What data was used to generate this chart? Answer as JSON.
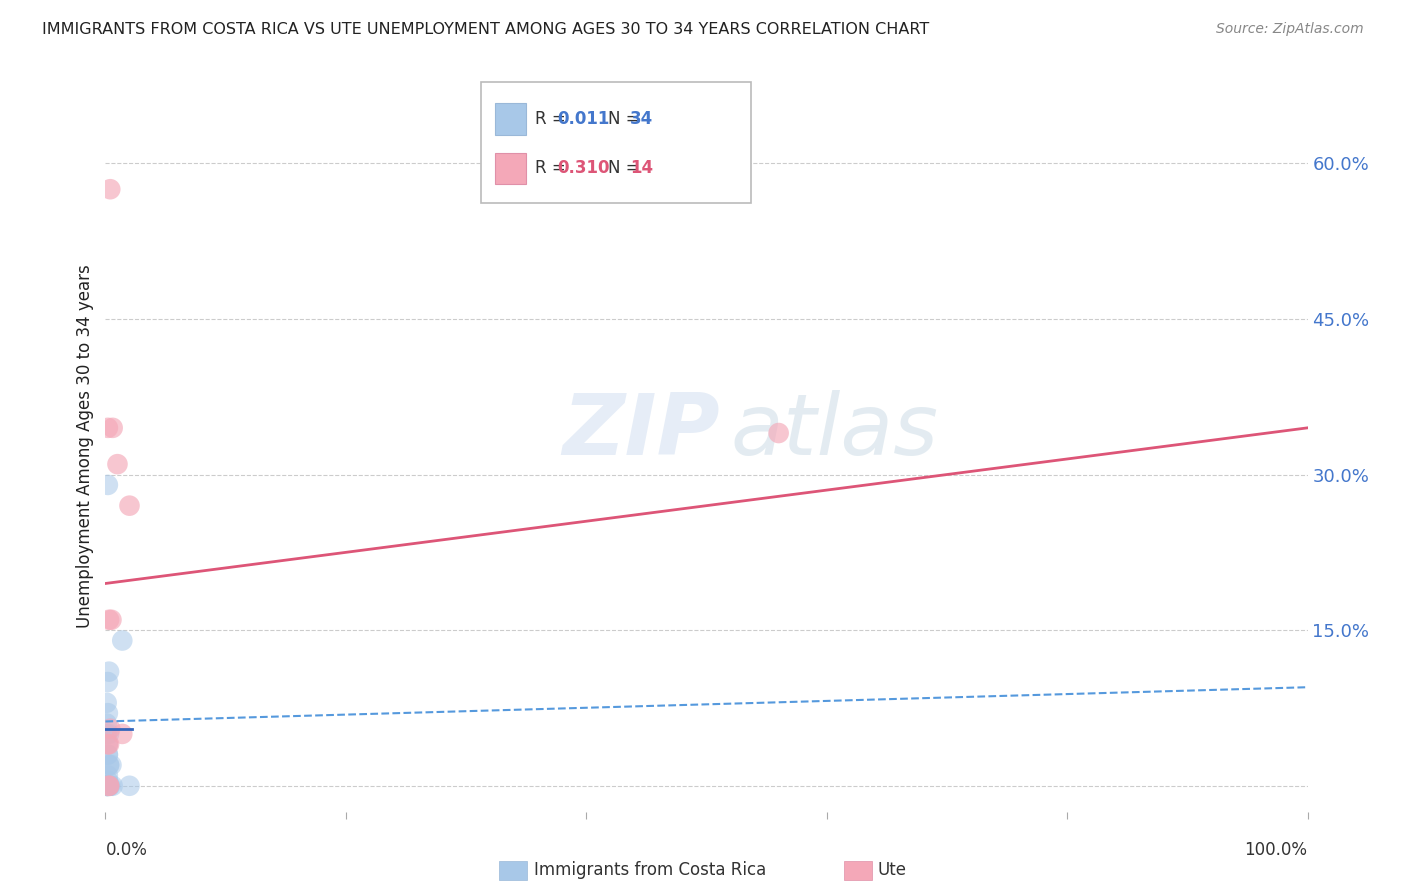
{
  "title": "IMMIGRANTS FROM COSTA RICA VS UTE UNEMPLOYMENT AMONG AGES 30 TO 34 YEARS CORRELATION CHART",
  "source": "Source: ZipAtlas.com",
  "ylabel": "Unemployment Among Ages 30 to 34 years",
  "ytick_values": [
    0.0,
    0.15,
    0.3,
    0.45,
    0.6
  ],
  "right_ytick_vals": [
    0.15,
    0.3,
    0.45,
    0.6
  ],
  "right_ytick_labels": [
    "15.0%",
    "30.0%",
    "45.0%",
    "60.0%"
  ],
  "xlim": [
    0.0,
    1.0
  ],
  "ylim": [
    -0.025,
    0.68
  ],
  "watermark_line1": "ZIP",
  "watermark_line2": "atlas",
  "legend_r1": "0.011",
  "legend_n1": "34",
  "legend_r2": "0.310",
  "legend_n2": "14",
  "blue_color": "#a8c8e8",
  "pink_color": "#f4a8b8",
  "blue_line_color": "#3366bb",
  "blue_dash_color": "#5599dd",
  "pink_line_color": "#dd5577",
  "title_color": "#222222",
  "right_axis_color": "#4477cc",
  "legend_r_color": "#4477cc",
  "legend_r2_color": "#dd5577",
  "blue_scatter_x": [
    0.002,
    0.003,
    0.001,
    0.004,
    0.003,
    0.002,
    0.003,
    0.002,
    0.001,
    0.002,
    0.003,
    0.001,
    0.002,
    0.001,
    0.002,
    0.003,
    0.002,
    0.001,
    0.001,
    0.002,
    0.001,
    0.002,
    0.001,
    0.002,
    0.001,
    0.003,
    0.002,
    0.001,
    0.014,
    0.02,
    0.005,
    0.006,
    0.002,
    0.002
  ],
  "blue_scatter_y": [
    0.005,
    0.0,
    0.0,
    0.0,
    0.02,
    0.03,
    0.05,
    0.07,
    0.08,
    0.1,
    0.11,
    0.05,
    0.04,
    0.06,
    0.03,
    0.02,
    0.01,
    0.0,
    0.0,
    0.0,
    0.0,
    0.0,
    0.0,
    0.0,
    0.0,
    0.0,
    0.0,
    0.0,
    0.14,
    0.0,
    0.02,
    0.0,
    0.0,
    0.29
  ],
  "pink_scatter_x": [
    0.004,
    0.006,
    0.002,
    0.01,
    0.003,
    0.004,
    0.56,
    0.002,
    0.005,
    0.003,
    0.014,
    0.02,
    0.003,
    0.003
  ],
  "pink_scatter_y": [
    0.575,
    0.345,
    0.345,
    0.31,
    0.16,
    0.055,
    0.34,
    0.04,
    0.16,
    0.0,
    0.05,
    0.27,
    0.04,
    0.0
  ],
  "blue_solid_line_x": [
    0.0,
    0.022
  ],
  "blue_solid_line_y": [
    0.055,
    0.055
  ],
  "blue_dash_line_x": [
    0.0,
    1.0
  ],
  "blue_dash_line_y": [
    0.062,
    0.095
  ],
  "pink_line_x": [
    0.0,
    1.0
  ],
  "pink_line_y": [
    0.195,
    0.345
  ],
  "grid_color": "#cccccc",
  "background_color": "#ffffff"
}
